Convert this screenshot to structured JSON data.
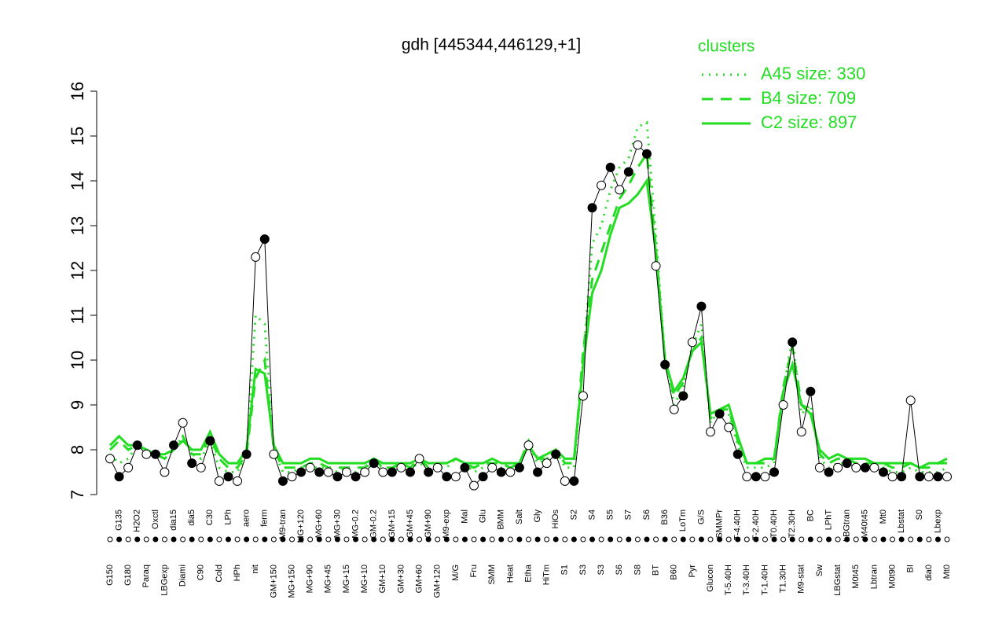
{
  "chart_data": {
    "type": "line",
    "title": "gdh [445344,446129,+1]",
    "legend_title": "clusters",
    "legend_position": "top-right",
    "ylim": [
      7,
      16
    ],
    "yticks": [
      7,
      8,
      9,
      10,
      11,
      12,
      13,
      14,
      15,
      16
    ],
    "categories": [
      "G150",
      "G135",
      "G180",
      "H2O2",
      "Paraq",
      "Oxctl",
      "LBGexp",
      "dia15",
      "Diami",
      "dia5",
      "C90",
      "C30",
      "Cold",
      "LPh",
      "HPh",
      "aero",
      "nit",
      "ferm",
      "GM+150",
      "M9-tran",
      "MG+150",
      "MG+120",
      "MG+90",
      "MG+60",
      "MG+45",
      "MG+30",
      "MG+15",
      "MG-0.2",
      "MG+10",
      "GM-0.2",
      "GM+10",
      "GM+15",
      "GM+30",
      "GM+45",
      "GM+60",
      "GM+90",
      "GM+120",
      "M9-exp",
      "M/G",
      "Mal",
      "Fru",
      "Glu",
      "SMM",
      "BMM",
      "Heat",
      "Salt",
      "Etha",
      "Gly",
      "HiTm",
      "HiOs",
      "S1",
      "S2",
      "S3",
      "S4",
      "S3",
      "S5",
      "S6",
      "S7",
      "S8",
      "S6",
      "BT",
      "B36",
      "B60",
      "LoTm",
      "Pyr",
      "G/S",
      "Glucon",
      "SMMPr",
      "T-5.40H",
      "T-4.40H",
      "T-3.40H",
      "T-2.40H",
      "T-1.40H",
      "T0.40H",
      "T1.30H",
      "T2.30H",
      "M9-stat",
      "BC",
      "Sw",
      "LPhT",
      "LBGstat",
      "LBGtran",
      "M0t45",
      "M40t45",
      "Lbtran",
      "Mt0",
      "M0t90",
      "Lbstat",
      "BI",
      "S0",
      "dia0",
      "Lbexp",
      "Mt0"
    ],
    "values": [
      7.8,
      7.4,
      7.6,
      8.1,
      7.9,
      7.9,
      7.5,
      8.1,
      8.6,
      7.7,
      7.6,
      8.2,
      7.3,
      7.4,
      7.3,
      7.9,
      12.3,
      12.7,
      7.9,
      7.3,
      7.4,
      7.5,
      7.6,
      7.5,
      7.5,
      7.4,
      7.5,
      7.4,
      7.5,
      7.7,
      7.5,
      7.5,
      7.6,
      7.5,
      7.8,
      7.5,
      7.6,
      7.4,
      7.4,
      7.6,
      7.2,
      7.4,
      7.6,
      7.5,
      7.5,
      7.6,
      8.1,
      7.5,
      7.7,
      7.9,
      7.3,
      7.3,
      9.2,
      13.4,
      13.9,
      14.3,
      13.8,
      14.2,
      14.8,
      14.6,
      12.1,
      9.9,
      8.9,
      9.2,
      10.4,
      11.2,
      8.4,
      8.8,
      8.5,
      7.9,
      7.4,
      7.4,
      7.4,
      7.5,
      9.0,
      10.4,
      8.4,
      9.3,
      7.6,
      7.5,
      7.6,
      7.7,
      7.6,
      7.6,
      7.6,
      7.5,
      7.4,
      7.4,
      9.1,
      7.4,
      7.4,
      7.4,
      7.4
    ],
    "series": [
      {
        "name": "A45 size: 330",
        "color": "#22dd22",
        "dash": "dotted",
        "values": [
          7.9,
          7.7,
          7.8,
          8.1,
          8.0,
          7.9,
          7.8,
          8.0,
          8.3,
          7.9,
          7.8,
          8.2,
          7.6,
          7.5,
          7.5,
          7.9,
          11.0,
          10.8,
          8.0,
          7.5,
          7.5,
          7.6,
          7.6,
          7.6,
          7.6,
          7.5,
          7.6,
          7.5,
          7.6,
          7.7,
          7.6,
          7.6,
          7.6,
          7.6,
          7.7,
          7.6,
          7.6,
          7.6,
          7.8,
          7.7,
          7.5,
          7.6,
          7.7,
          7.6,
          7.6,
          7.7,
          8.1,
          7.7,
          7.8,
          8.0,
          7.6,
          7.6,
          10.0,
          12.6,
          13.0,
          13.8,
          14.3,
          14.5,
          15.2,
          15.3,
          12.8,
          10.0,
          9.0,
          9.4,
          10.3,
          10.8,
          8.6,
          8.9,
          8.8,
          8.1,
          7.6,
          7.6,
          7.6,
          7.7,
          9.3,
          10.5,
          8.8,
          9.0,
          7.8,
          7.6,
          7.7,
          7.7,
          7.6,
          7.6,
          7.6,
          7.6,
          7.5,
          7.5,
          7.6,
          7.5,
          7.5,
          7.5,
          7.6
        ]
      },
      {
        "name": "B4 size: 709",
        "color": "#22dd22",
        "dash": "dashed",
        "values": [
          8.0,
          8.2,
          8.0,
          8.1,
          8.0,
          7.9,
          7.8,
          8.0,
          8.3,
          7.9,
          7.9,
          8.3,
          7.8,
          7.6,
          7.6,
          7.9,
          9.6,
          10.0,
          8.0,
          7.6,
          7.6,
          7.6,
          7.7,
          7.7,
          7.6,
          7.6,
          7.6,
          7.6,
          7.6,
          7.8,
          7.6,
          7.6,
          7.7,
          7.6,
          7.8,
          7.6,
          7.7,
          7.7,
          7.8,
          7.7,
          7.6,
          7.7,
          7.7,
          7.7,
          7.6,
          7.7,
          8.2,
          7.8,
          7.8,
          8.0,
          7.7,
          7.7,
          10.2,
          11.8,
          12.4,
          13.0,
          13.6,
          13.9,
          14.3,
          14.6,
          12.5,
          10.0,
          9.2,
          9.5,
          10.2,
          10.5,
          8.7,
          8.9,
          8.9,
          8.2,
          7.7,
          7.7,
          7.7,
          7.8,
          9.4,
          10.3,
          9.0,
          8.9,
          7.9,
          7.7,
          7.8,
          7.8,
          7.7,
          7.7,
          7.7,
          7.7,
          7.6,
          7.6,
          7.7,
          7.6,
          7.6,
          7.7,
          7.7
        ]
      },
      {
        "name": "C2 size: 897",
        "color": "#22dd22",
        "dash": "solid",
        "values": [
          8.1,
          8.3,
          8.1,
          8.1,
          8.0,
          7.9,
          7.9,
          8.0,
          8.2,
          8.0,
          8.0,
          8.4,
          7.9,
          7.7,
          7.7,
          8.0,
          9.8,
          9.7,
          8.1,
          7.7,
          7.7,
          7.7,
          7.8,
          7.8,
          7.7,
          7.7,
          7.7,
          7.7,
          7.7,
          7.8,
          7.7,
          7.7,
          7.7,
          7.7,
          7.8,
          7.7,
          7.7,
          7.7,
          7.8,
          7.7,
          7.7,
          7.7,
          7.8,
          7.7,
          7.7,
          7.7,
          8.1,
          7.8,
          7.9,
          8.0,
          7.8,
          7.8,
          9.9,
          11.5,
          12.0,
          12.8,
          13.4,
          13.5,
          13.7,
          14.0,
          12.4,
          10.0,
          9.3,
          9.6,
          10.2,
          10.4,
          8.8,
          8.9,
          9.0,
          8.3,
          7.7,
          7.7,
          7.8,
          7.8,
          9.3,
          9.9,
          9.0,
          8.8,
          8.0,
          7.8,
          7.9,
          7.8,
          7.8,
          7.8,
          7.7,
          7.7,
          7.7,
          7.7,
          7.7,
          7.6,
          7.7,
          7.7,
          7.8
        ]
      }
    ]
  }
}
